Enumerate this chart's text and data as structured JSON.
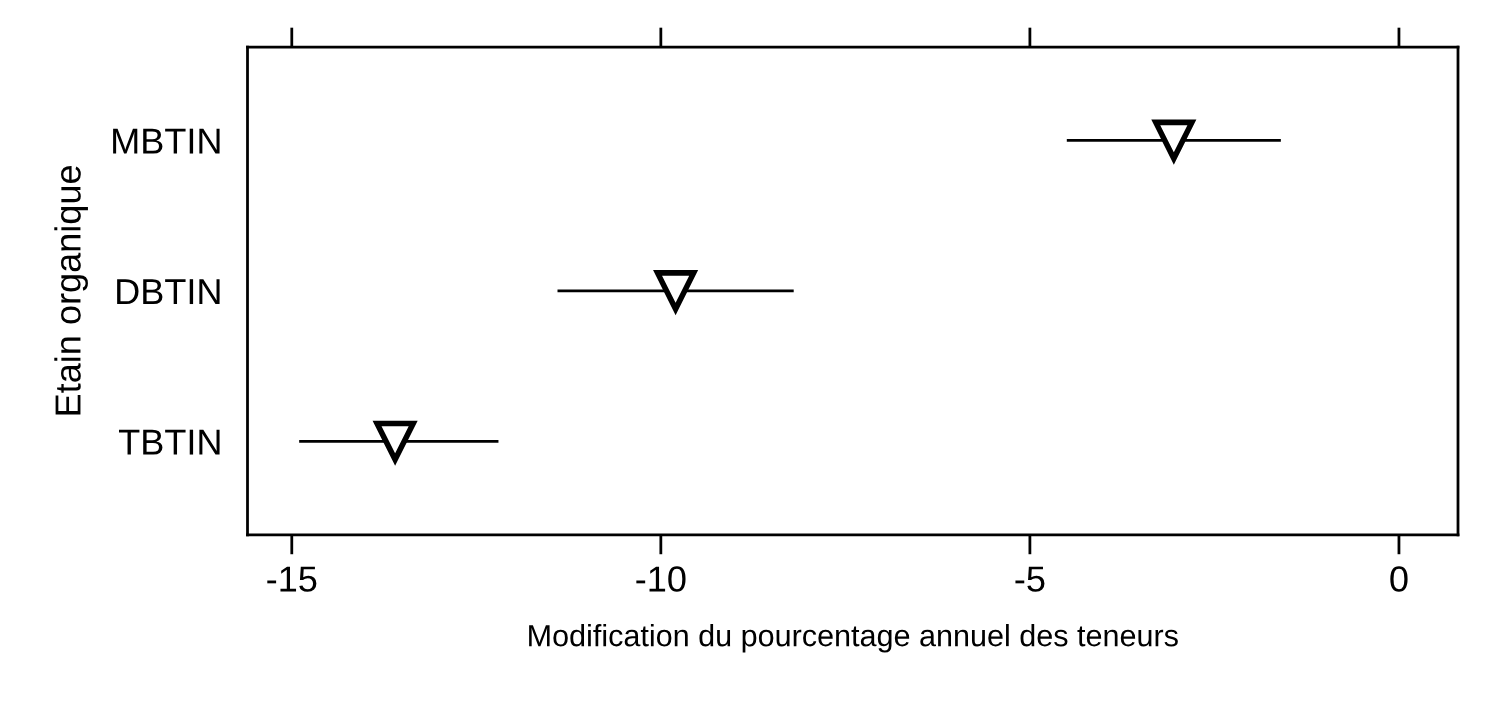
{
  "chart_data": {
    "type": "scatter",
    "orientation": "horizontal",
    "categories": [
      "MBTIN",
      "DBTIN",
      "TBTIN"
    ],
    "values": [
      -3.05,
      -9.8,
      -13.6
    ],
    "errors": [
      [
        -4.5,
        -1.6
      ],
      [
        -11.4,
        -8.2
      ],
      [
        -14.9,
        -12.2
      ]
    ],
    "color": "#000000",
    "marker": "triangle",
    "xlim": [
      -15.6,
      0.8
    ],
    "xticks": [
      -15,
      -10,
      -5,
      0
    ],
    "xlabel": "Modification du pourcentage annuel des teneurs",
    "ylabel": "Etain organique",
    "grid": false
  }
}
